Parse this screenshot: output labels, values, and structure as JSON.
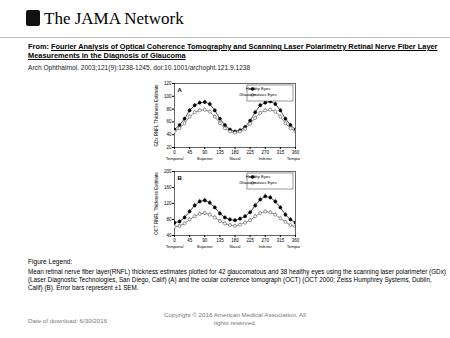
{
  "header": {
    "brand": "The JAMA Network",
    "from_label": "From:",
    "title": "Fourier Analysis of Optical Coherence Tomography and Scanning Laser Polarimetry Retinal Nerve Fiber Layer Measurements in the Diagnosis of Glaucoma",
    "citation": "Arch Ophthalmol. 2003;121(9):1238-1245. doi:10.1001/archopht.121.9.1238"
  },
  "chart_data": [
    {
      "type": "line",
      "panel": "A",
      "y_label": "GDx RNFL Thickness Estimate",
      "x": [
        0,
        15,
        30,
        45,
        60,
        75,
        90,
        105,
        120,
        135,
        150,
        165,
        180,
        195,
        210,
        225,
        240,
        255,
        270,
        285,
        300,
        315,
        330,
        345,
        360
      ],
      "xlim": [
        0,
        360
      ],
      "xticks": [
        0,
        45,
        90,
        135,
        180,
        225,
        270,
        315,
        360
      ],
      "region_labels": [
        {
          "value": 0,
          "label": "Temporal"
        },
        {
          "value": 90,
          "label": "Superior"
        },
        {
          "value": 180,
          "label": "Nasal"
        },
        {
          "value": 270,
          "label": "Inferior"
        },
        {
          "value": 360,
          "label": "Temporal"
        }
      ],
      "ylim": [
        20,
        120
      ],
      "yticks": [
        20,
        40,
        60,
        80,
        100,
        120
      ],
      "legend": "top-right",
      "series": [
        {
          "name": "Healthy Eyes",
          "color": "#000000",
          "marker": "filled_circle",
          "line_style": "solid",
          "values": [
            48,
            55,
            65,
            78,
            86,
            90,
            91,
            88,
            78,
            65,
            55,
            48,
            45,
            47,
            52,
            62,
            75,
            86,
            90,
            92,
            88,
            78,
            65,
            55,
            48
          ],
          "sem": [
            2,
            2,
            2,
            3,
            3,
            3,
            3,
            3,
            3,
            2,
            2,
            2,
            2,
            2,
            2,
            2,
            3,
            3,
            3,
            3,
            3,
            3,
            2,
            2,
            2
          ]
        },
        {
          "name": "Glaucomatous Eyes",
          "color": "#555555",
          "marker": "open_circle",
          "line_style": "solid",
          "values": [
            45,
            50,
            58,
            68,
            75,
            78,
            79,
            76,
            68,
            58,
            50,
            45,
            43,
            45,
            49,
            57,
            66,
            74,
            78,
            79,
            76,
            68,
            58,
            50,
            45
          ],
          "sem": [
            2,
            2,
            2,
            3,
            3,
            3,
            3,
            3,
            3,
            2,
            2,
            2,
            2,
            2,
            2,
            2,
            3,
            3,
            3,
            3,
            3,
            3,
            2,
            2,
            2
          ]
        }
      ]
    },
    {
      "type": "line",
      "panel": "B",
      "y_label": "OCT RNFL Thickness Estimate",
      "x": [
        0,
        15,
        30,
        45,
        60,
        75,
        90,
        105,
        120,
        135,
        150,
        165,
        180,
        195,
        210,
        225,
        240,
        255,
        270,
        285,
        300,
        315,
        330,
        345,
        360
      ],
      "xlim": [
        0,
        360
      ],
      "xticks": [
        0,
        45,
        90,
        135,
        180,
        225,
        270,
        315,
        360
      ],
      "region_labels": [
        {
          "value": 0,
          "label": "Temporal"
        },
        {
          "value": 90,
          "label": "Superior"
        },
        {
          "value": 180,
          "label": "Nasal"
        },
        {
          "value": 270,
          "label": "Inferior"
        },
        {
          "value": 360,
          "label": "Temporal"
        }
      ],
      "ylim": [
        40,
        200
      ],
      "yticks": [
        40,
        80,
        120,
        160,
        200
      ],
      "legend": "top-right",
      "series": [
        {
          "name": "Healthy Eyes",
          "color": "#000000",
          "marker": "filled_circle",
          "line_style": "solid",
          "values": [
            72,
            75,
            85,
            100,
            115,
            125,
            128,
            122,
            110,
            95,
            85,
            80,
            78,
            82,
            88,
            98,
            115,
            130,
            138,
            135,
            125,
            110,
            92,
            80,
            72
          ],
          "sem": [
            4,
            4,
            5,
            5,
            6,
            6,
            6,
            6,
            5,
            5,
            4,
            4,
            4,
            4,
            4,
            5,
            6,
            6,
            6,
            6,
            6,
            5,
            5,
            4,
            4
          ]
        },
        {
          "name": "Glaucomatous Eyes",
          "color": "#555555",
          "marker": "open_circle",
          "line_style": "solid",
          "values": [
            62,
            64,
            70,
            80,
            88,
            94,
            96,
            92,
            85,
            76,
            70,
            66,
            64,
            67,
            72,
            78,
            88,
            96,
            100,
            98,
            92,
            83,
            74,
            66,
            62
          ],
          "sem": [
            4,
            4,
            4,
            5,
            5,
            5,
            5,
            5,
            5,
            4,
            4,
            4,
            4,
            4,
            4,
            4,
            5,
            5,
            5,
            5,
            5,
            5,
            4,
            4,
            4
          ]
        }
      ]
    }
  ],
  "figure_legend": {
    "heading": "Figure Legend:",
    "text": "Mean retinal nerve fiber layer(RNFL) thickness estimates plotted for 42 glaucomatous and 38 healthy eyes using the scanning laser polarimeter (GDx) (Laser Diagnostic Technologies, San Diego, Calif) (A) and the ocular coherence tomograph (OCT) (OCT 2000; Zeiss Humphrey Systems, Dublin, Calif) (B). Error bars represent ±1 SEM."
  },
  "footer": {
    "date": "Date of download: 6/30/2016",
    "copyright": "Copyright © 2016 American Medical Association. All rights reserved."
  }
}
